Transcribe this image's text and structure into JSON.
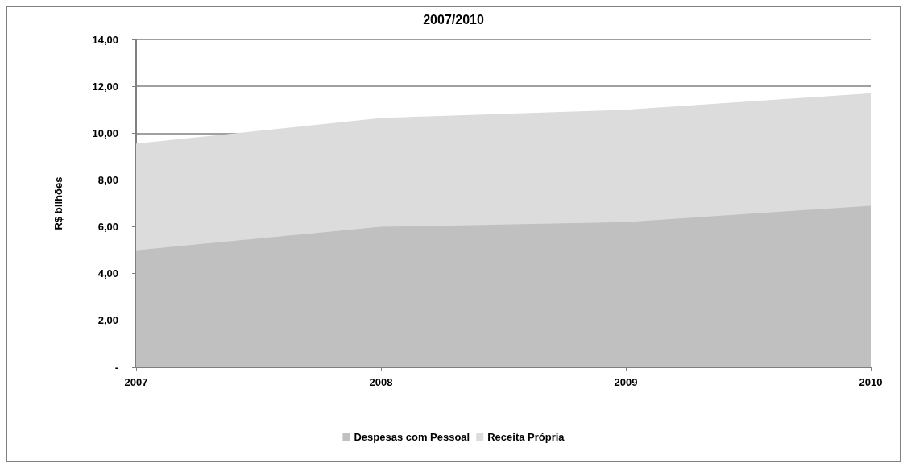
{
  "chart_data": {
    "type": "area",
    "title": "2007/2010",
    "ylabel": "R$ bilhões",
    "categories": [
      "2007",
      "2008",
      "2009",
      "2010"
    ],
    "series": [
      {
        "name": "Despesas com Pessoal",
        "color": "#c0c0c0",
        "values": [
          5.0,
          6.0,
          6.2,
          6.9
        ]
      },
      {
        "name": "Receita Própria",
        "color": "#dcdcdc",
        "values": [
          9.55,
          10.65,
          11.0,
          11.7
        ]
      }
    ],
    "ylim": [
      0,
      14
    ],
    "yticks": [
      {
        "value": 0,
        "label": "-"
      },
      {
        "value": 2,
        "label": "2,00"
      },
      {
        "value": 4,
        "label": "4,00"
      },
      {
        "value": 6,
        "label": "6,00"
      },
      {
        "value": 8,
        "label": "8,00"
      },
      {
        "value": 10,
        "label": "10,00"
      },
      {
        "value": 12,
        "label": "12,00"
      },
      {
        "value": 14,
        "label": "14,00"
      }
    ],
    "grid": "y",
    "legend": "bottom"
  }
}
